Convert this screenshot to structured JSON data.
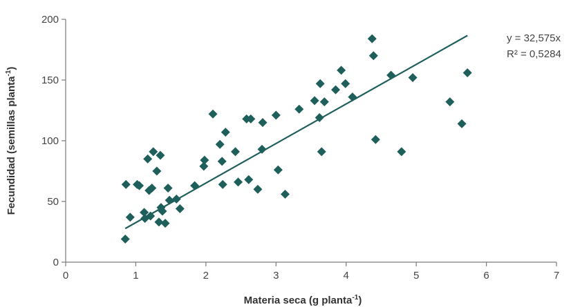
{
  "chart_data": {
    "type": "scatter",
    "xlabel": "Materia seca (g planta",
    "xlabel_sup": "-1",
    "xlabel_end": ")",
    "ylabel": "Fecundidad (semillas  planta",
    "ylabel_sup": "-1",
    "ylabel_end": ")",
    "xlim": [
      0,
      7
    ],
    "ylim": [
      0,
      200
    ],
    "x_ticks": [
      0,
      1,
      2,
      3,
      4,
      5,
      6,
      7
    ],
    "y_ticks": [
      0,
      50,
      100,
      150,
      200
    ],
    "grid": false,
    "marker": "diamond",
    "color": "#1f5f5b",
    "points": [
      [
        0.85,
        19
      ],
      [
        0.86,
        64
      ],
      [
        0.92,
        37
      ],
      [
        1.02,
        64
      ],
      [
        1.05,
        63
      ],
      [
        1.12,
        41
      ],
      [
        1.13,
        36
      ],
      [
        1.17,
        85
      ],
      [
        1.19,
        59
      ],
      [
        1.21,
        38
      ],
      [
        1.23,
        61
      ],
      [
        1.25,
        91
      ],
      [
        1.3,
        75
      ],
      [
        1.33,
        33
      ],
      [
        1.35,
        88
      ],
      [
        1.36,
        45
      ],
      [
        1.38,
        42
      ],
      [
        1.42,
        32
      ],
      [
        1.46,
        61
      ],
      [
        1.48,
        51
      ],
      [
        1.58,
        52
      ],
      [
        1.63,
        44
      ],
      [
        1.84,
        63
      ],
      [
        1.97,
        79
      ],
      [
        1.98,
        84
      ],
      [
        2.1,
        122
      ],
      [
        2.2,
        97
      ],
      [
        2.23,
        83
      ],
      [
        2.24,
        64
      ],
      [
        2.28,
        107
      ],
      [
        2.42,
        91
      ],
      [
        2.46,
        66
      ],
      [
        2.58,
        118
      ],
      [
        2.61,
        68
      ],
      [
        2.64,
        118
      ],
      [
        2.74,
        60
      ],
      [
        2.8,
        93
      ],
      [
        2.81,
        115
      ],
      [
        3.0,
        121
      ],
      [
        3.03,
        76
      ],
      [
        3.13,
        56
      ],
      [
        3.33,
        126
      ],
      [
        3.55,
        133
      ],
      [
        3.62,
        119
      ],
      [
        3.63,
        147
      ],
      [
        3.65,
        91
      ],
      [
        3.69,
        132
      ],
      [
        3.85,
        142
      ],
      [
        3.93,
        158
      ],
      [
        3.99,
        147
      ],
      [
        4.09,
        136
      ],
      [
        4.37,
        184
      ],
      [
        4.39,
        170
      ],
      [
        4.42,
        101
      ],
      [
        4.64,
        154
      ],
      [
        4.79,
        91
      ],
      [
        4.95,
        152
      ],
      [
        5.48,
        132
      ],
      [
        5.65,
        114
      ],
      [
        5.73,
        156
      ]
    ],
    "trendline": {
      "slope": 32.575,
      "x_range": [
        0.85,
        5.73
      ],
      "equation": "y = 32,575x",
      "r2_label": "R² = 0,5284"
    }
  }
}
